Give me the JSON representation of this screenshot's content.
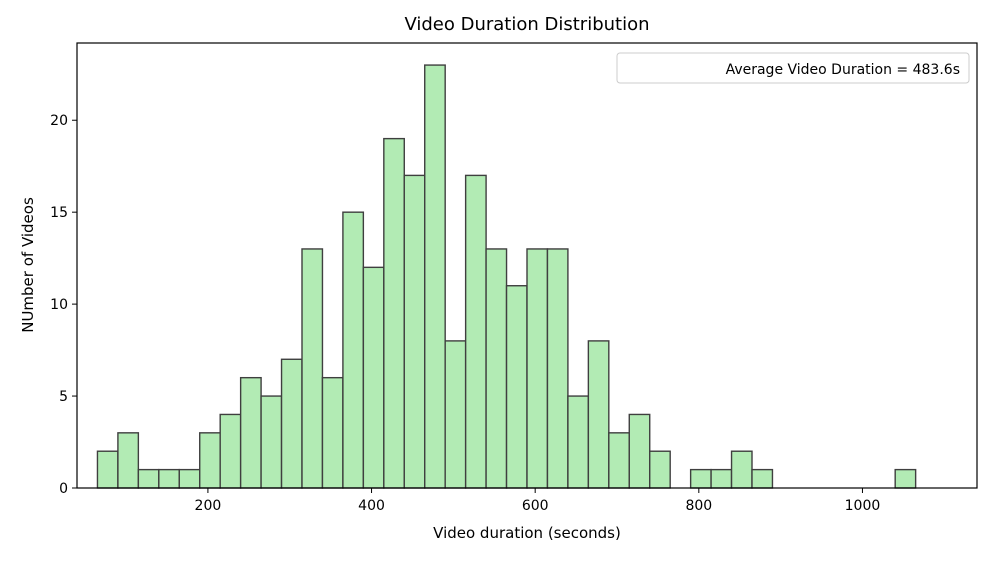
{
  "chart_data": {
    "type": "bar",
    "title": "Video Duration Distribution",
    "xlabel": "Video duration (seconds)",
    "ylabel": "NUmber of Videos",
    "xlim": [
      40,
      1140
    ],
    "ylim": [
      0,
      24.2
    ],
    "xticks": [
      200,
      400,
      600,
      800,
      1000
    ],
    "yticks": [
      0,
      5,
      10,
      15,
      20
    ],
    "bar_color": "#b2ebb4",
    "edge_color": "#3f3f3f",
    "bins": [
      {
        "x0": 65,
        "x1": 90,
        "count": 2
      },
      {
        "x0": 90,
        "x1": 115,
        "count": 3
      },
      {
        "x0": 115,
        "x1": 140,
        "count": 1
      },
      {
        "x0": 140,
        "x1": 165,
        "count": 1
      },
      {
        "x0": 165,
        "x1": 190,
        "count": 1
      },
      {
        "x0": 190,
        "x1": 215,
        "count": 3
      },
      {
        "x0": 215,
        "x1": 240,
        "count": 4
      },
      {
        "x0": 240,
        "x1": 265,
        "count": 6
      },
      {
        "x0": 265,
        "x1": 290,
        "count": 5
      },
      {
        "x0": 290,
        "x1": 315,
        "count": 7
      },
      {
        "x0": 315,
        "x1": 340,
        "count": 13
      },
      {
        "x0": 340,
        "x1": 365,
        "count": 6
      },
      {
        "x0": 365,
        "x1": 390,
        "count": 15
      },
      {
        "x0": 390,
        "x1": 415,
        "count": 12
      },
      {
        "x0": 415,
        "x1": 440,
        "count": 19
      },
      {
        "x0": 440,
        "x1": 465,
        "count": 17
      },
      {
        "x0": 465,
        "x1": 490,
        "count": 23
      },
      {
        "x0": 490,
        "x1": 515,
        "count": 8
      },
      {
        "x0": 515,
        "x1": 540,
        "count": 17
      },
      {
        "x0": 540,
        "x1": 565,
        "count": 13
      },
      {
        "x0": 565,
        "x1": 590,
        "count": 11
      },
      {
        "x0": 590,
        "x1": 615,
        "count": 13
      },
      {
        "x0": 615,
        "x1": 640,
        "count": 13
      },
      {
        "x0": 640,
        "x1": 665,
        "count": 5
      },
      {
        "x0": 665,
        "x1": 690,
        "count": 8
      },
      {
        "x0": 690,
        "x1": 715,
        "count": 3
      },
      {
        "x0": 715,
        "x1": 740,
        "count": 4
      },
      {
        "x0": 740,
        "x1": 765,
        "count": 2
      },
      {
        "x0": 765,
        "x1": 790,
        "count": 0
      },
      {
        "x0": 790,
        "x1": 815,
        "count": 1
      },
      {
        "x0": 815,
        "x1": 840,
        "count": 1
      },
      {
        "x0": 840,
        "x1": 865,
        "count": 2
      },
      {
        "x0": 865,
        "x1": 890,
        "count": 1
      },
      {
        "x0": 890,
        "x1": 915,
        "count": 0
      },
      {
        "x0": 915,
        "x1": 940,
        "count": 0
      },
      {
        "x0": 940,
        "x1": 965,
        "count": 0
      },
      {
        "x0": 965,
        "x1": 990,
        "count": 0
      },
      {
        "x0": 990,
        "x1": 1015,
        "count": 0
      },
      {
        "x0": 1015,
        "x1": 1040,
        "count": 0
      },
      {
        "x0": 1040,
        "x1": 1065,
        "count": 1
      }
    ],
    "legend": {
      "placement": "top-right",
      "entries": [
        "Average Video Duration = 483.6s"
      ]
    },
    "grid": false
  }
}
